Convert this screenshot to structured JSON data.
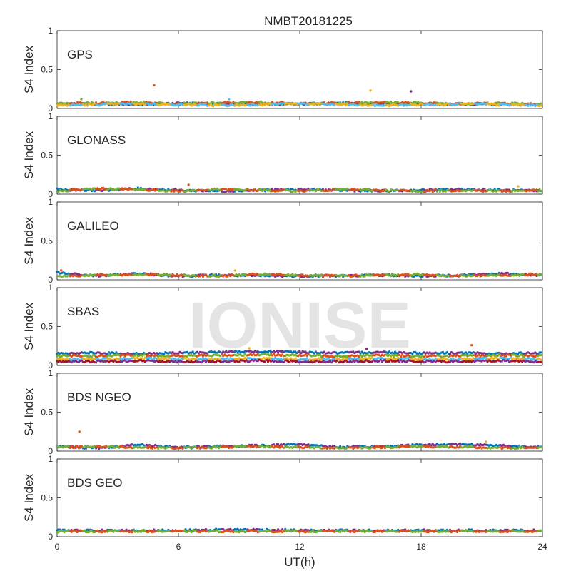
{
  "figure": {
    "title": "NMBT20181225",
    "watermark": "IONISE",
    "xlabel": "UT(h)"
  },
  "chart_data": {
    "type": "scatter",
    "title": "NMBT20181225",
    "xlabel": "UT(h)",
    "ylabel": "S4 Index",
    "xlim": [
      0,
      24
    ],
    "ylim": [
      0,
      1
    ],
    "xticks": [
      0,
      6,
      12,
      18,
      24
    ],
    "yticks": [
      0,
      0.5,
      1
    ],
    "ytick_labels": [
      "0",
      "0.5",
      "1"
    ],
    "grid": false,
    "colors": [
      "#0072BD",
      "#D95319",
      "#EDB120",
      "#7E2F8E",
      "#77AC30",
      "#4DBEEE",
      "#A2142F"
    ],
    "panels": [
      {
        "label": "GPS",
        "series": [
          {
            "x": [
              0,
              2,
              4,
              6,
              8,
              10,
              12,
              14,
              16,
              18,
              20,
              22,
              24
            ],
            "y": [
              0.05,
              0.06,
              0.05,
              0.07,
              0.06,
              0.05,
              0.06,
              0.07,
              0.06,
              0.05,
              0.06,
              0.05,
              0.05
            ]
          },
          {
            "x": [
              0,
              2,
              4,
              6,
              8,
              10,
              12,
              14,
              16,
              18,
              20,
              22,
              24
            ],
            "y": [
              0.06,
              0.07,
              0.08,
              0.06,
              0.07,
              0.08,
              0.06,
              0.07,
              0.08,
              0.07,
              0.06,
              0.07,
              0.06
            ]
          },
          {
            "x": [
              0,
              2,
              4,
              6,
              8,
              10,
              12,
              14,
              16,
              18,
              20,
              22,
              24
            ],
            "y": [
              0.04,
              0.05,
              0.06,
              0.05,
              0.04,
              0.05,
              0.06,
              0.05,
              0.04,
              0.05,
              0.06,
              0.05,
              0.04
            ]
          }
        ],
        "outliers": [
          [
            4.8,
            0.3
          ],
          [
            15.5,
            0.23
          ],
          [
            17.5,
            0.22
          ],
          [
            1.2,
            0.12
          ],
          [
            8.5,
            0.12
          ]
        ]
      },
      {
        "label": "GLONASS",
        "series": [
          {
            "x": [
              0,
              2,
              4,
              6,
              8,
              10,
              12,
              14,
              16,
              18,
              20,
              22,
              24
            ],
            "y": [
              0.06,
              0.05,
              0.07,
              0.05,
              0.04,
              0.05,
              0.06,
              0.05,
              0.04,
              0.05,
              0.06,
              0.05,
              0.04
            ]
          },
          {
            "x": [
              0,
              2,
              4,
              6,
              8,
              10,
              12,
              14,
              16,
              18,
              20,
              22,
              24
            ],
            "y": [
              0.04,
              0.07,
              0.06,
              0.04,
              0.06,
              0.05,
              0.04,
              0.06,
              0.05,
              0.04,
              0.05,
              0.04,
              0.05
            ]
          }
        ],
        "outliers": [
          [
            6.5,
            0.12
          ],
          [
            22.8,
            0.1
          ]
        ]
      },
      {
        "label": "GALILEO",
        "series": [
          {
            "x": [
              0,
              2,
              4,
              6,
              8,
              10,
              12,
              14,
              16,
              18,
              20,
              22,
              24
            ],
            "y": [
              0.09,
              0.05,
              0.08,
              0.05,
              0.06,
              0.05,
              0.05,
              0.05,
              0.06,
              0.05,
              0.06,
              0.08,
              0.06
            ]
          },
          {
            "x": [
              0,
              2,
              4,
              6,
              8,
              10,
              12,
              14,
              16,
              18,
              20,
              22,
              24
            ],
            "y": [
              0.05,
              0.06,
              0.07,
              0.06,
              0.05,
              0.07,
              0.06,
              0.05,
              0.06,
              0.07,
              0.05,
              0.06,
              0.07
            ]
          }
        ],
        "outliers": [
          [
            0.2,
            0.12
          ],
          [
            8.8,
            0.12
          ]
        ]
      },
      {
        "label": "SBAS",
        "series": [
          {
            "x": [
              0,
              2,
              4,
              6,
              8,
              10,
              12,
              14,
              16,
              18,
              20,
              22,
              24
            ],
            "y": [
              0.15,
              0.16,
              0.15,
              0.16,
              0.17,
              0.18,
              0.17,
              0.16,
              0.17,
              0.16,
              0.16,
              0.15,
              0.16
            ]
          },
          {
            "x": [
              0,
              2,
              4,
              6,
              8,
              10,
              12,
              14,
              16,
              18,
              20,
              22,
              24
            ],
            "y": [
              0.12,
              0.12,
              0.13,
              0.12,
              0.13,
              0.14,
              0.13,
              0.12,
              0.13,
              0.12,
              0.12,
              0.13,
              0.12
            ]
          },
          {
            "x": [
              0,
              2,
              4,
              6,
              8,
              10,
              12,
              14,
              16,
              18,
              20,
              22,
              24
            ],
            "y": [
              0.08,
              0.08,
              0.09,
              0.08,
              0.08,
              0.09,
              0.08,
              0.08,
              0.09,
              0.08,
              0.08,
              0.09,
              0.08
            ]
          },
          {
            "x": [
              0,
              2,
              4,
              6,
              8,
              10,
              12,
              14,
              16,
              18,
              20,
              22,
              24
            ],
            "y": [
              0.05,
              0.05,
              0.06,
              0.05,
              0.05,
              0.06,
              0.05,
              0.05,
              0.06,
              0.05,
              0.05,
              0.06,
              0.05
            ]
          }
        ],
        "outliers": [
          [
            20.5,
            0.26
          ],
          [
            9.5,
            0.22
          ],
          [
            15.3,
            0.21
          ]
        ]
      },
      {
        "label": "BDS NGEO",
        "series": [
          {
            "x": [
              0,
              2,
              4,
              6,
              8,
              10,
              12,
              14,
              16,
              18,
              20,
              22,
              24
            ],
            "y": [
              0.06,
              0.04,
              0.08,
              0.05,
              0.06,
              0.07,
              0.09,
              0.05,
              0.06,
              0.08,
              0.09,
              0.07,
              0.05
            ]
          },
          {
            "x": [
              0,
              2,
              4,
              6,
              8,
              10,
              12,
              14,
              16,
              18,
              20,
              22,
              24
            ],
            "y": [
              0.05,
              0.06,
              0.05,
              0.04,
              0.05,
              0.06,
              0.05,
              0.04,
              0.05,
              0.06,
              0.05,
              0.04,
              0.05
            ]
          }
        ],
        "outliers": [
          [
            1.1,
            0.25
          ],
          [
            21.2,
            0.12
          ]
        ]
      },
      {
        "label": "BDS GEO",
        "series": [
          {
            "x": [
              0,
              2,
              4,
              6,
              8,
              10,
              12,
              14,
              16,
              18,
              20,
              22,
              24
            ],
            "y": [
              0.08,
              0.08,
              0.08,
              0.08,
              0.09,
              0.09,
              0.08,
              0.08,
              0.08,
              0.08,
              0.08,
              0.08,
              0.08
            ]
          },
          {
            "x": [
              0,
              2,
              4,
              6,
              8,
              10,
              12,
              14,
              16,
              18,
              20,
              22,
              24
            ],
            "y": [
              0.07,
              0.07,
              0.07,
              0.07,
              0.07,
              0.07,
              0.07,
              0.07,
              0.07,
              0.07,
              0.07,
              0.07,
              0.07
            ]
          }
        ],
        "outliers": []
      }
    ]
  }
}
